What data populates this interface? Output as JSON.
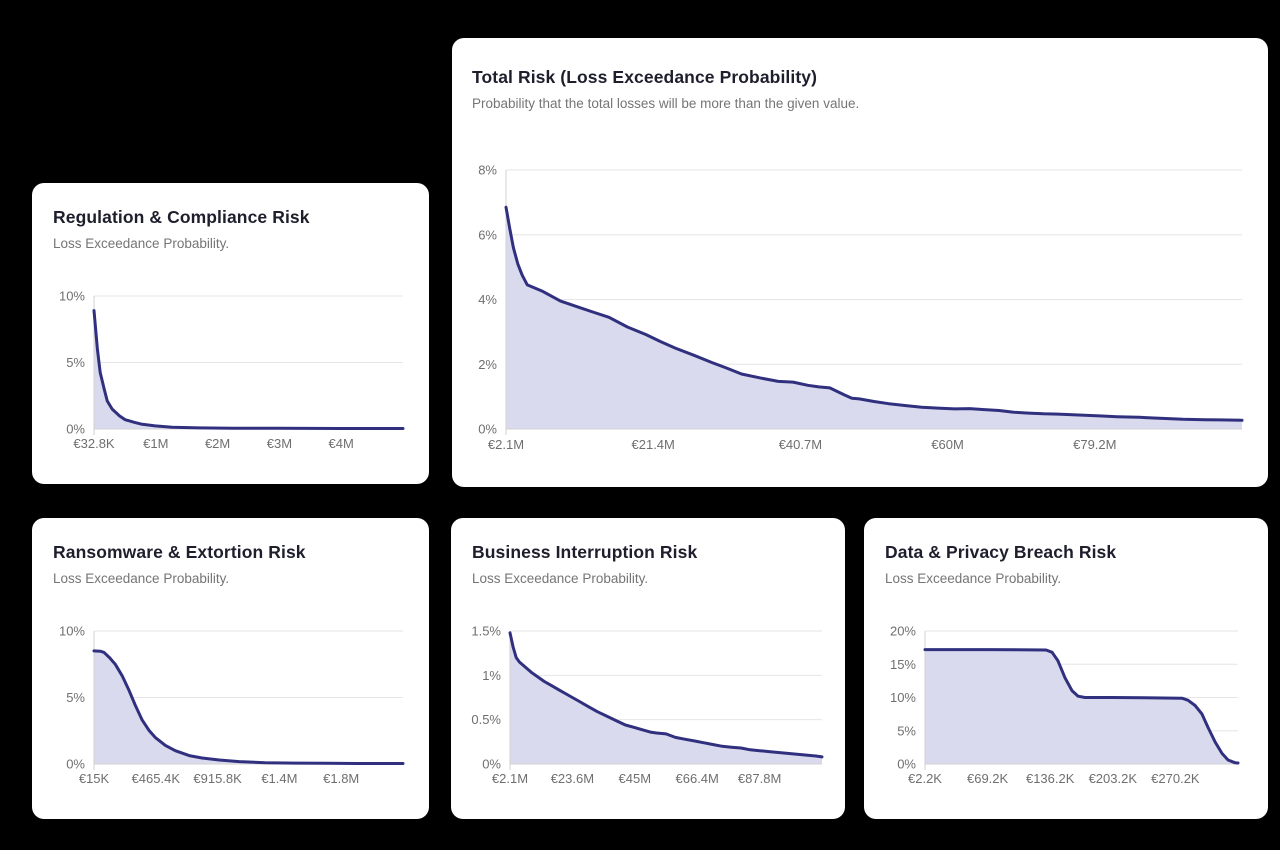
{
  "theme": {
    "background": "#000000",
    "card_background": "#ffffff",
    "line_color": "#30307f",
    "fill_color": "#dadaef",
    "grid_color": "#e6e6e6",
    "axis_color": "#d2d2d2",
    "title_color": "#1e1e2d",
    "subtitle_color": "#757575",
    "tick_color": "#6f6f6f"
  },
  "chart_data": [
    {
      "id": "regulation-compliance-risk",
      "type": "area",
      "title": "Regulation & Compliance Risk",
      "subtitle": "Loss Exceedance Probability.",
      "xlabel": "",
      "ylabel": "",
      "y_unit": "%",
      "ylim": [
        0,
        10
      ],
      "grid": true,
      "legend_position": "none",
      "y_ticks": [
        "10%",
        "5%",
        "0%"
      ],
      "y_max": 10,
      "x_ticks": [
        "€32.8K",
        "€1M",
        "€2M",
        "€3M",
        "€4M"
      ],
      "points": [
        [
          0,
          8.9
        ],
        [
          0.011,
          6.0
        ],
        [
          0.02,
          4.25
        ],
        [
          0.033,
          3.0
        ],
        [
          0.043,
          2.1
        ],
        [
          0.059,
          1.5
        ],
        [
          0.082,
          1.0
        ],
        [
          0.101,
          0.7
        ],
        [
          0.13,
          0.5
        ],
        [
          0.156,
          0.35
        ],
        [
          0.198,
          0.23
        ],
        [
          0.253,
          0.13
        ],
        [
          0.34,
          0.08
        ],
        [
          0.45,
          0.06
        ],
        [
          0.6,
          0.05
        ],
        [
          0.8,
          0.04
        ],
        [
          1,
          0.04
        ]
      ]
    },
    {
      "id": "total-risk",
      "type": "area",
      "title": "Total Risk (Loss Exceedance Probability)",
      "subtitle": "Probability that the total losses will be more than the given value.",
      "xlabel": "",
      "ylabel": "",
      "y_unit": "%",
      "ylim": [
        0,
        8
      ],
      "grid": true,
      "legend_position": "none",
      "y_ticks": [
        "8%",
        "6%",
        "4%",
        "2%",
        "0%"
      ],
      "y_max": 8,
      "x_ticks": [
        "€2.1M",
        "€21.4M",
        "€40.7M",
        "€60M",
        "€79.2M"
      ],
      "points": [
        [
          0,
          6.85
        ],
        [
          0.005,
          6.2
        ],
        [
          0.01,
          5.6
        ],
        [
          0.016,
          5.1
        ],
        [
          0.022,
          4.75
        ],
        [
          0.029,
          4.45
        ],
        [
          0.05,
          4.25
        ],
        [
          0.074,
          3.95
        ],
        [
          0.1,
          3.75
        ],
        [
          0.12,
          3.6
        ],
        [
          0.14,
          3.45
        ],
        [
          0.165,
          3.15
        ],
        [
          0.19,
          2.92
        ],
        [
          0.21,
          2.7
        ],
        [
          0.23,
          2.5
        ],
        [
          0.255,
          2.28
        ],
        [
          0.28,
          2.05
        ],
        [
          0.3,
          1.88
        ],
        [
          0.32,
          1.7
        ],
        [
          0.347,
          1.57
        ],
        [
          0.37,
          1.47
        ],
        [
          0.39,
          1.45
        ],
        [
          0.41,
          1.35
        ],
        [
          0.425,
          1.3
        ],
        [
          0.44,
          1.27
        ],
        [
          0.46,
          1.05
        ],
        [
          0.47,
          0.95
        ],
        [
          0.48,
          0.93
        ],
        [
          0.5,
          0.85
        ],
        [
          0.52,
          0.78
        ],
        [
          0.545,
          0.72
        ],
        [
          0.565,
          0.67
        ],
        [
          0.59,
          0.64
        ],
        [
          0.61,
          0.62
        ],
        [
          0.63,
          0.63
        ],
        [
          0.65,
          0.6
        ],
        [
          0.67,
          0.57
        ],
        [
          0.69,
          0.52
        ],
        [
          0.71,
          0.49
        ],
        [
          0.73,
          0.47
        ],
        [
          0.75,
          0.46
        ],
        [
          0.77,
          0.44
        ],
        [
          0.79,
          0.42
        ],
        [
          0.81,
          0.4
        ],
        [
          0.83,
          0.38
        ],
        [
          0.86,
          0.36
        ],
        [
          0.88,
          0.34
        ],
        [
          0.9,
          0.32
        ],
        [
          0.92,
          0.3
        ],
        [
          0.95,
          0.285
        ],
        [
          0.97,
          0.28
        ],
        [
          1,
          0.27
        ]
      ]
    },
    {
      "id": "ransomware-extortion-risk",
      "type": "area",
      "title": "Ransomware & Extortion Risk",
      "subtitle": "Loss Exceedance Probability.",
      "xlabel": "",
      "ylabel": "",
      "y_unit": "%",
      "ylim": [
        0,
        10
      ],
      "grid": true,
      "legend_position": "none",
      "y_ticks": [
        "10%",
        "5%",
        "0%"
      ],
      "y_max": 10,
      "x_ticks": [
        "€15K",
        "€465.4K",
        "€915.8K",
        "€1.4M",
        "€1.8M"
      ],
      "points": [
        [
          0,
          8.5
        ],
        [
          0.02,
          8.48
        ],
        [
          0.032,
          8.4
        ],
        [
          0.05,
          8.0
        ],
        [
          0.069,
          7.5
        ],
        [
          0.092,
          6.6
        ],
        [
          0.114,
          5.5
        ],
        [
          0.134,
          4.4
        ],
        [
          0.156,
          3.3
        ],
        [
          0.179,
          2.5
        ],
        [
          0.198,
          2.0
        ],
        [
          0.231,
          1.4
        ],
        [
          0.263,
          1.0
        ],
        [
          0.308,
          0.63
        ],
        [
          0.35,
          0.45
        ],
        [
          0.405,
          0.3
        ],
        [
          0.47,
          0.18
        ],
        [
          0.554,
          0.1
        ],
        [
          0.65,
          0.07
        ],
        [
          0.75,
          0.05
        ],
        [
          0.85,
          0.04
        ],
        [
          1,
          0.04
        ]
      ]
    },
    {
      "id": "business-interruption-risk",
      "type": "area",
      "title": "Business Interruption Risk",
      "subtitle": "Loss Exceedance Probability.",
      "xlabel": "",
      "ylabel": "",
      "y_unit": "%",
      "ylim": [
        0,
        1.5
      ],
      "grid": true,
      "legend_position": "none",
      "y_ticks": [
        "1.5%",
        "1%",
        "0.5%",
        "0%"
      ],
      "y_max": 1.5,
      "x_ticks": [
        "€2.1M",
        "€23.6M",
        "€45M",
        "€66.4M",
        "€87.8M"
      ],
      "points": [
        [
          0,
          1.48
        ],
        [
          0.01,
          1.32
        ],
        [
          0.02,
          1.2
        ],
        [
          0.03,
          1.15
        ],
        [
          0.05,
          1.09
        ],
        [
          0.07,
          1.03
        ],
        [
          0.09,
          0.98
        ],
        [
          0.11,
          0.93
        ],
        [
          0.13,
          0.89
        ],
        [
          0.16,
          0.83
        ],
        [
          0.18,
          0.79
        ],
        [
          0.2,
          0.75
        ],
        [
          0.22,
          0.71
        ],
        [
          0.25,
          0.65
        ],
        [
          0.28,
          0.59
        ],
        [
          0.31,
          0.54
        ],
        [
          0.34,
          0.49
        ],
        [
          0.37,
          0.44
        ],
        [
          0.4,
          0.41
        ],
        [
          0.43,
          0.38
        ],
        [
          0.45,
          0.36
        ],
        [
          0.47,
          0.35
        ],
        [
          0.5,
          0.34
        ],
        [
          0.53,
          0.3
        ],
        [
          0.56,
          0.28
        ],
        [
          0.59,
          0.26
        ],
        [
          0.62,
          0.24
        ],
        [
          0.65,
          0.22
        ],
        [
          0.68,
          0.2
        ],
        [
          0.71,
          0.19
        ],
        [
          0.74,
          0.18
        ],
        [
          0.77,
          0.16
        ],
        [
          0.8,
          0.15
        ],
        [
          0.83,
          0.14
        ],
        [
          0.86,
          0.13
        ],
        [
          0.89,
          0.12
        ],
        [
          0.92,
          0.11
        ],
        [
          0.95,
          0.1
        ],
        [
          0.98,
          0.09
        ],
        [
          1,
          0.08
        ]
      ]
    },
    {
      "id": "data-privacy-breach-risk",
      "type": "area",
      "title": "Data & Privacy Breach Risk",
      "subtitle": "Loss Exceedance Probability.",
      "xlabel": "",
      "ylabel": "",
      "y_unit": "%",
      "ylim": [
        0,
        20
      ],
      "grid": true,
      "legend_position": "none",
      "y_ticks": [
        "20%",
        "15%",
        "10%",
        "5%",
        "0%"
      ],
      "y_max": 20,
      "x_ticks": [
        "€2.2K",
        "€69.2K",
        "€136.2K",
        "€203.2K",
        "€270.2K"
      ],
      "points": [
        [
          0,
          17.2
        ],
        [
          0.2,
          17.2
        ],
        [
          0.387,
          17.15
        ],
        [
          0.406,
          16.8
        ],
        [
          0.425,
          15.5
        ],
        [
          0.447,
          13.0
        ],
        [
          0.47,
          11.0
        ],
        [
          0.489,
          10.2
        ],
        [
          0.511,
          10.0
        ],
        [
          0.6,
          10.0
        ],
        [
          0.7,
          9.95
        ],
        [
          0.821,
          9.9
        ],
        [
          0.84,
          9.6
        ],
        [
          0.863,
          8.8
        ],
        [
          0.885,
          7.5
        ],
        [
          0.904,
          5.5
        ],
        [
          0.927,
          3.3
        ],
        [
          0.949,
          1.6
        ],
        [
          0.968,
          0.6
        ],
        [
          0.99,
          0.2
        ],
        [
          1,
          0.15
        ]
      ]
    }
  ]
}
